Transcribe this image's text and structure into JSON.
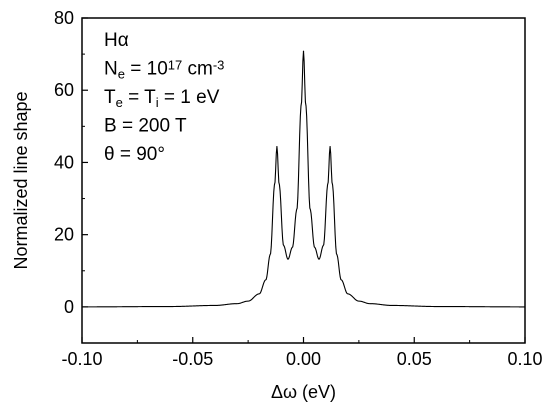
{
  "chart_data": {
    "type": "line",
    "title": "",
    "xlabel": "Δω (eV)",
    "ylabel": "Normalized line shape",
    "xlim": [
      -0.1,
      0.1
    ],
    "ylim": [
      -10,
      80
    ],
    "x_ticks": [
      -0.1,
      -0.05,
      0.0,
      0.05,
      0.1
    ],
    "x_tick_labels": [
      "-0.10",
      "-0.05",
      "0.00",
      "0.05",
      "0.10"
    ],
    "y_ticks": [
      0,
      20,
      40,
      60,
      80
    ],
    "y_tick_labels": [
      "0",
      "20",
      "40",
      "60",
      "80"
    ],
    "grid": false,
    "legend": "none",
    "annotations": [
      {
        "parts": [
          {
            "t": "Hα"
          }
        ]
      },
      {
        "parts": [
          {
            "t": "N"
          },
          {
            "t": "e",
            "sub": true
          },
          {
            "t": " = 10"
          },
          {
            "t": "17",
            "sup": true
          },
          {
            "t": " cm"
          },
          {
            "t": "-3",
            "sup": true
          }
        ]
      },
      {
        "parts": [
          {
            "t": "T"
          },
          {
            "t": "e",
            "sub": true
          },
          {
            "t": " = T"
          },
          {
            "t": "i",
            "sub": true
          },
          {
            "t": " = 1 eV"
          }
        ]
      },
      {
        "parts": [
          {
            "t": "B = 200 T"
          }
        ]
      },
      {
        "parts": [
          {
            "t": "θ = 90°"
          }
        ]
      }
    ],
    "series": [
      {
        "color": "#000000",
        "peaks": [
          {
            "center": -0.012,
            "height": 44.4
          },
          {
            "center": 0.0,
            "height": 70.8
          },
          {
            "center": 0.012,
            "height": 44.4
          }
        ],
        "points": [
          [
            -0.1,
            0.0
          ],
          [
            -0.06,
            0.1
          ],
          [
            -0.04,
            0.4
          ],
          [
            -0.03,
            0.9
          ],
          [
            -0.025,
            1.6
          ],
          [
            -0.02,
            3.6
          ],
          [
            -0.017,
            7.5
          ],
          [
            -0.015,
            14.5
          ],
          [
            -0.013,
            34.0
          ],
          [
            -0.012,
            44.4
          ],
          [
            -0.011,
            34.0
          ],
          [
            -0.009,
            17.0
          ],
          [
            -0.007,
            13.2
          ],
          [
            -0.005,
            16.5
          ],
          [
            -0.003,
            27.0
          ],
          [
            -0.001,
            56.0
          ],
          [
            0.0,
            70.8
          ],
          [
            0.001,
            56.0
          ],
          [
            0.003,
            27.0
          ],
          [
            0.005,
            16.5
          ],
          [
            0.007,
            13.2
          ],
          [
            0.009,
            17.0
          ],
          [
            0.011,
            34.0
          ],
          [
            0.012,
            44.4
          ],
          [
            0.013,
            34.0
          ],
          [
            0.015,
            14.5
          ],
          [
            0.017,
            7.5
          ],
          [
            0.02,
            3.6
          ],
          [
            0.025,
            1.6
          ],
          [
            0.03,
            0.9
          ],
          [
            0.04,
            0.4
          ],
          [
            0.06,
            0.1
          ],
          [
            0.1,
            0.0
          ]
        ]
      }
    ]
  }
}
